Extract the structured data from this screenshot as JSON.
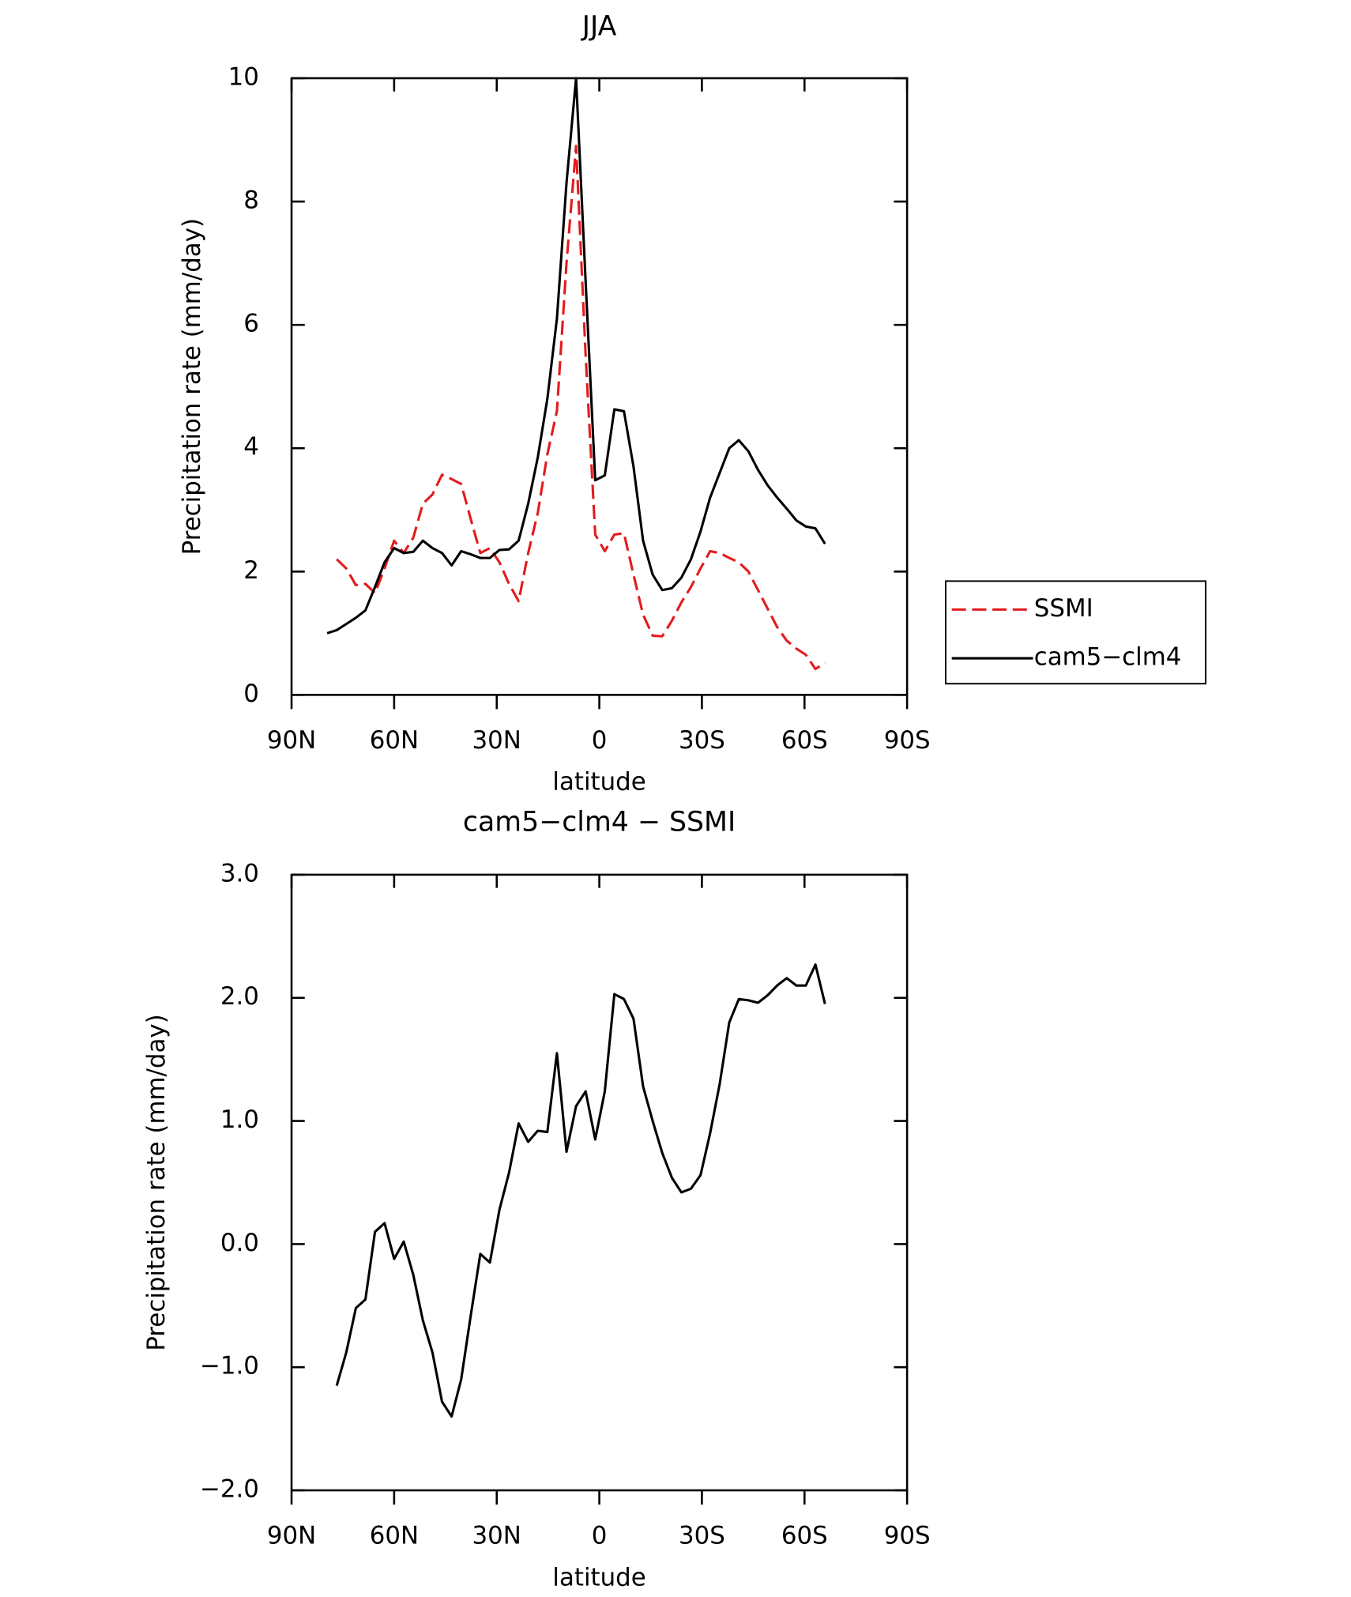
{
  "chart_data": [
    {
      "type": "line",
      "title": "JJA",
      "xlabel": "latitude",
      "ylabel": "Precipitation rate (mm/day)",
      "x": [
        79.6,
        76.8,
        74.0,
        71.2,
        68.4,
        65.6,
        62.8,
        60.0,
        57.2,
        54.4,
        51.6,
        48.8,
        46.0,
        43.2,
        40.4,
        37.6,
        34.8,
        32.0,
        29.2,
        26.4,
        23.6,
        20.8,
        18.0,
        15.2,
        12.4,
        9.6,
        6.8,
        4.0,
        1.2,
        -1.6,
        -4.4,
        -7.2,
        -10.0,
        -12.8,
        -15.6,
        -18.4,
        -21.2,
        -24.0,
        -26.8,
        -29.6,
        -32.4,
        -35.2,
        -38.0,
        -40.8,
        -43.6,
        -46.4,
        -49.2,
        -52.0,
        -54.8,
        -57.6,
        -60.4,
        -63.2,
        -66.0
      ],
      "series": [
        {
          "name": "SSMI",
          "color": "#e41a1c",
          "dashed": true,
          "values": [
            null,
            2.2,
            2.05,
            1.78,
            1.8,
            1.65,
            2.05,
            2.5,
            2.3,
            2.55,
            3.1,
            3.25,
            3.57,
            3.5,
            3.42,
            2.85,
            2.3,
            2.38,
            2.15,
            1.8,
            1.52,
            2.3,
            2.95,
            3.9,
            4.6,
            7.0,
            8.9,
            5.5,
            2.6,
            2.33,
            2.6,
            2.62,
            1.95,
            1.3,
            0.96,
            0.95,
            1.2,
            1.5,
            1.75,
            2.05,
            2.33,
            2.3,
            2.22,
            2.15,
            2.0,
            1.7,
            1.4,
            1.1,
            0.88,
            0.75,
            0.65,
            0.42,
            0.52
          ]
        },
        {
          "name": "cam5−clm4",
          "color": "#000000",
          "dashed": false,
          "values": [
            1.0,
            1.05,
            1.15,
            1.25,
            1.37,
            1.75,
            2.15,
            2.38,
            2.3,
            2.32,
            2.5,
            2.38,
            2.3,
            2.1,
            2.33,
            2.28,
            2.22,
            2.22,
            2.35,
            2.36,
            2.5,
            3.1,
            3.85,
            4.8,
            6.1,
            8.3,
            10.0,
            6.7,
            3.48,
            3.56,
            4.63,
            4.6,
            3.7,
            2.5,
            1.95,
            1.7,
            1.73,
            1.9,
            2.2,
            2.65,
            3.2,
            3.6,
            4.0,
            4.13,
            3.95,
            3.65,
            3.4,
            3.2,
            3.02,
            2.83,
            2.73,
            2.7,
            2.45
          ]
        }
      ],
      "xlim": [
        90,
        -90
      ],
      "xticks": [
        {
          "value": 90,
          "label": "90N"
        },
        {
          "value": 60,
          "label": "60N"
        },
        {
          "value": 30,
          "label": "30N"
        },
        0,
        {
          "value": -30,
          "label": "30S"
        },
        {
          "value": -60,
          "label": "60S"
        },
        {
          "value": -90,
          "label": "90S"
        }
      ],
      "ylim": [
        0,
        10
      ],
      "yticks": [
        0,
        2,
        4,
        6,
        8,
        10
      ],
      "legend": "right"
    },
    {
      "type": "line",
      "title": "cam5−clm4 − SSMI",
      "xlabel": "latitude",
      "ylabel": "Precipitation rate (mm/day)",
      "x": [
        79.6,
        76.8,
        74.0,
        71.2,
        68.4,
        65.6,
        62.8,
        60.0,
        57.2,
        54.4,
        51.6,
        48.8,
        46.0,
        43.2,
        40.4,
        37.6,
        34.8,
        32.0,
        29.2,
        26.4,
        23.6,
        20.8,
        18.0,
        15.2,
        12.4,
        9.6,
        6.8,
        4.0,
        1.2,
        -1.6,
        -4.4,
        -7.2,
        -10.0,
        -12.8,
        -15.6,
        -18.4,
        -21.2,
        -24.0,
        -26.8,
        -29.6,
        -32.4,
        -35.2,
        -38.0,
        -40.8,
        -43.6,
        -46.4,
        -49.2,
        -52.0,
        -54.8,
        -57.6,
        -60.4,
        -63.2,
        -66.0
      ],
      "series": [
        {
          "color": "#000000",
          "dashed": false,
          "values": [
            null,
            -1.15,
            -0.88,
            -0.52,
            -0.45,
            0.1,
            0.17,
            -0.12,
            0.02,
            -0.25,
            -0.62,
            -0.88,
            -1.28,
            -1.4,
            -1.1,
            -0.58,
            -0.08,
            -0.15,
            0.28,
            0.58,
            0.98,
            0.83,
            0.92,
            0.91,
            1.55,
            0.75,
            1.12,
            1.24,
            0.85,
            1.24,
            2.03,
            1.99,
            1.83,
            1.28,
            1.0,
            0.74,
            0.54,
            0.42,
            0.45,
            0.56,
            0.9,
            1.3,
            1.8,
            1.99,
            1.98,
            1.96,
            2.02,
            2.1,
            2.16,
            2.1,
            2.1,
            2.27,
            1.95
          ]
        }
      ],
      "xlim": [
        90,
        -90
      ],
      "xticks": [
        {
          "value": 90,
          "label": "90N"
        },
        {
          "value": 60,
          "label": "60N"
        },
        {
          "value": 30,
          "label": "30N"
        },
        0,
        {
          "value": -30,
          "label": "30S"
        },
        {
          "value": -60,
          "label": "60S"
        },
        {
          "value": -90,
          "label": "90S"
        }
      ],
      "ylim": [
        -2,
        3
      ],
      "yticks": [
        {
          "value": -2,
          "label": "−2.0"
        },
        {
          "value": -1,
          "label": "−1.0"
        },
        {
          "value": 0,
          "label": "0.0"
        },
        {
          "value": 1,
          "label": "1.0"
        },
        {
          "value": 2,
          "label": "2.0"
        },
        {
          "value": 3,
          "label": "3.0"
        }
      ]
    }
  ]
}
